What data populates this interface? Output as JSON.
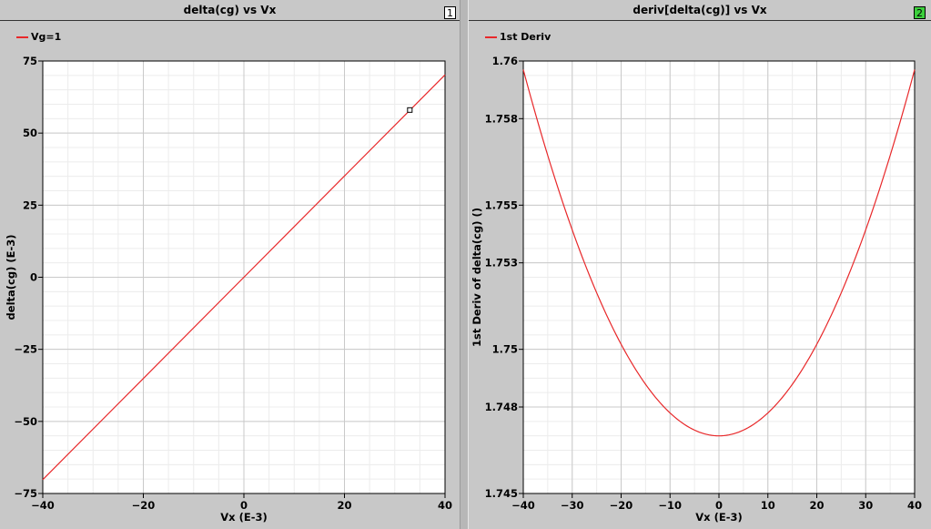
{
  "colors": {
    "trace": "#e8282a",
    "background": "#c8c8c8",
    "plot_bg": "#ffffff",
    "grid_major": "#c9c9c9",
    "grid_minor": "#ececec",
    "active_badge": "#3ccf3c"
  },
  "chart_data": [
    {
      "type": "line",
      "title": "delta(cg) vs Vx",
      "plot_number": "1",
      "xlabel": "Vx (E-3)",
      "ylabel": "delta(cg) (E-3)",
      "xlim": [
        -40,
        40
      ],
      "ylim": [
        -75,
        75
      ],
      "x_ticks": [
        -40,
        -20,
        0,
        20,
        40
      ],
      "y_ticks": [
        75,
        50,
        25,
        0,
        -25,
        -50,
        -75
      ],
      "grid": true,
      "legend_position": "top-left",
      "series": [
        {
          "name": "Vg=1",
          "x": [
            -40,
            -20,
            0,
            20,
            40
          ],
          "y": [
            -70.2,
            -35.1,
            0,
            35.1,
            70.2
          ]
        }
      ],
      "marker": {
        "x": 33,
        "y": 58
      }
    },
    {
      "type": "line",
      "title": "deriv[delta(cg)] vs Vx",
      "plot_number": "2",
      "xlabel": "Vx (E-3)",
      "ylabel": "1st Deriv of delta(cg) ()",
      "xlim": [
        -40,
        40
      ],
      "ylim": [
        1.745,
        1.76
      ],
      "x_ticks": [
        -40,
        -30,
        -20,
        -10,
        0,
        10,
        20,
        30,
        40
      ],
      "y_ticks": [
        1.76,
        1.758,
        1.755,
        1.753,
        1.75,
        1.748,
        1.745
      ],
      "y_tick_labels": [
        "1.76",
        "1.758",
        "1.755",
        "1.753",
        "1.75",
        "1.748",
        "1.745"
      ],
      "grid": true,
      "legend_position": "top-left",
      "series": [
        {
          "name": "1st Deriv",
          "x": [
            -40,
            -35,
            -30,
            -25,
            -20,
            -15,
            -10,
            -5,
            0,
            5,
            10,
            15,
            20,
            25,
            30,
            35,
            40
          ],
          "y": [
            1.7597,
            1.7572,
            1.7548,
            1.7528,
            1.7508,
            1.7493,
            1.7481,
            1.7473,
            1.747,
            1.7473,
            1.7481,
            1.7493,
            1.7508,
            1.7528,
            1.7548,
            1.7572,
            1.7597
          ]
        }
      ]
    }
  ]
}
